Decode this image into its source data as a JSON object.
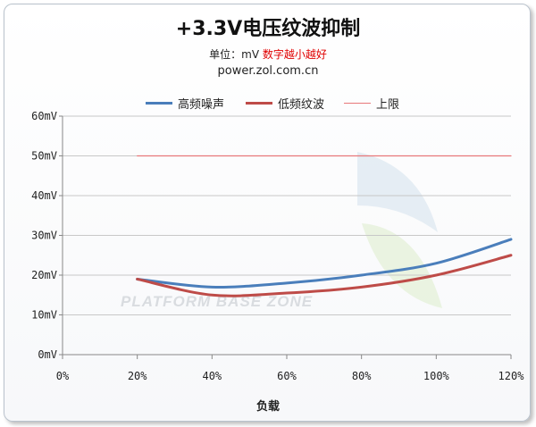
{
  "chart_data": {
    "type": "line",
    "title": "+3.3V电压纹波抑制",
    "subtitle_prefix": "单位：mV ",
    "subtitle_note": "数字越小越好",
    "source": "power.zol.com.cn",
    "xlabel": "负载",
    "ylabel": "",
    "x_ticks": [
      "0%",
      "20%",
      "40%",
      "60%",
      "80%",
      "100%",
      "120%"
    ],
    "y_ticks": [
      "0mV",
      "10mV",
      "20mV",
      "30mV",
      "40mV",
      "50mV",
      "60mV"
    ],
    "xlim": [
      0,
      120
    ],
    "ylim": [
      0,
      60
    ],
    "x": [
      20,
      40,
      60,
      80,
      100,
      120
    ],
    "legend_position": "top",
    "grid": "horizontal",
    "series": [
      {
        "name": "高频噪声",
        "color": "#4a7ebb",
        "values": [
          19,
          17,
          18,
          20,
          23,
          29
        ]
      },
      {
        "name": "低频纹波",
        "color": "#be4b48",
        "values": [
          19,
          15,
          15.5,
          17,
          20,
          25
        ]
      },
      {
        "name": "上限",
        "color": "#e8777a",
        "values": [
          50,
          50,
          50,
          50,
          50,
          50
        ]
      }
    ],
    "watermark": "PLATFORM BASE ZONE"
  }
}
